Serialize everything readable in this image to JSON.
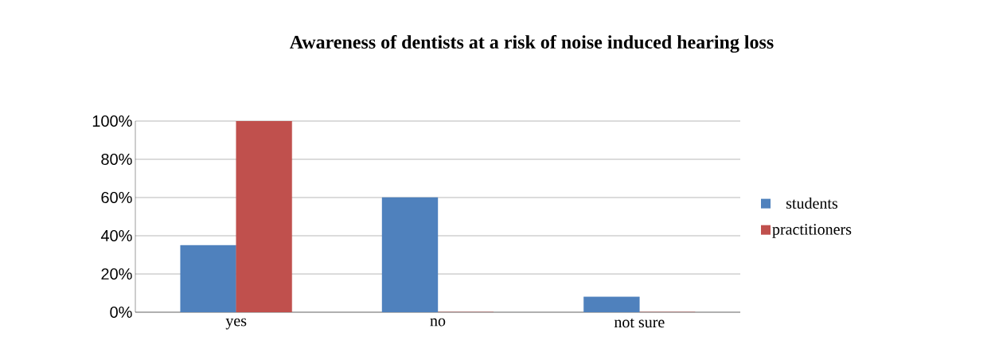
{
  "chart_data": {
    "type": "bar",
    "title": "Awareness of dentists at a risk of noise induced hearing loss",
    "categories": [
      "yes",
      "no",
      "not sure"
    ],
    "series": [
      {
        "name": "students",
        "color": "#4f81bd",
        "values": [
          35,
          60,
          8
        ]
      },
      {
        "name": "practitioners",
        "color": "#c0504d",
        "values": [
          100,
          0,
          0
        ]
      }
    ],
    "ylim": [
      0,
      100
    ],
    "yticks": [
      {
        "value": 0,
        "label": "0%"
      },
      {
        "value": 20,
        "label": "20%"
      },
      {
        "value": 40,
        "label": "40%"
      },
      {
        "value": 60,
        "label": "60%"
      },
      {
        "value": 80,
        "label": "80%"
      },
      {
        "value": 100,
        "label": "100%"
      }
    ],
    "grid": "y",
    "legend": "right"
  }
}
